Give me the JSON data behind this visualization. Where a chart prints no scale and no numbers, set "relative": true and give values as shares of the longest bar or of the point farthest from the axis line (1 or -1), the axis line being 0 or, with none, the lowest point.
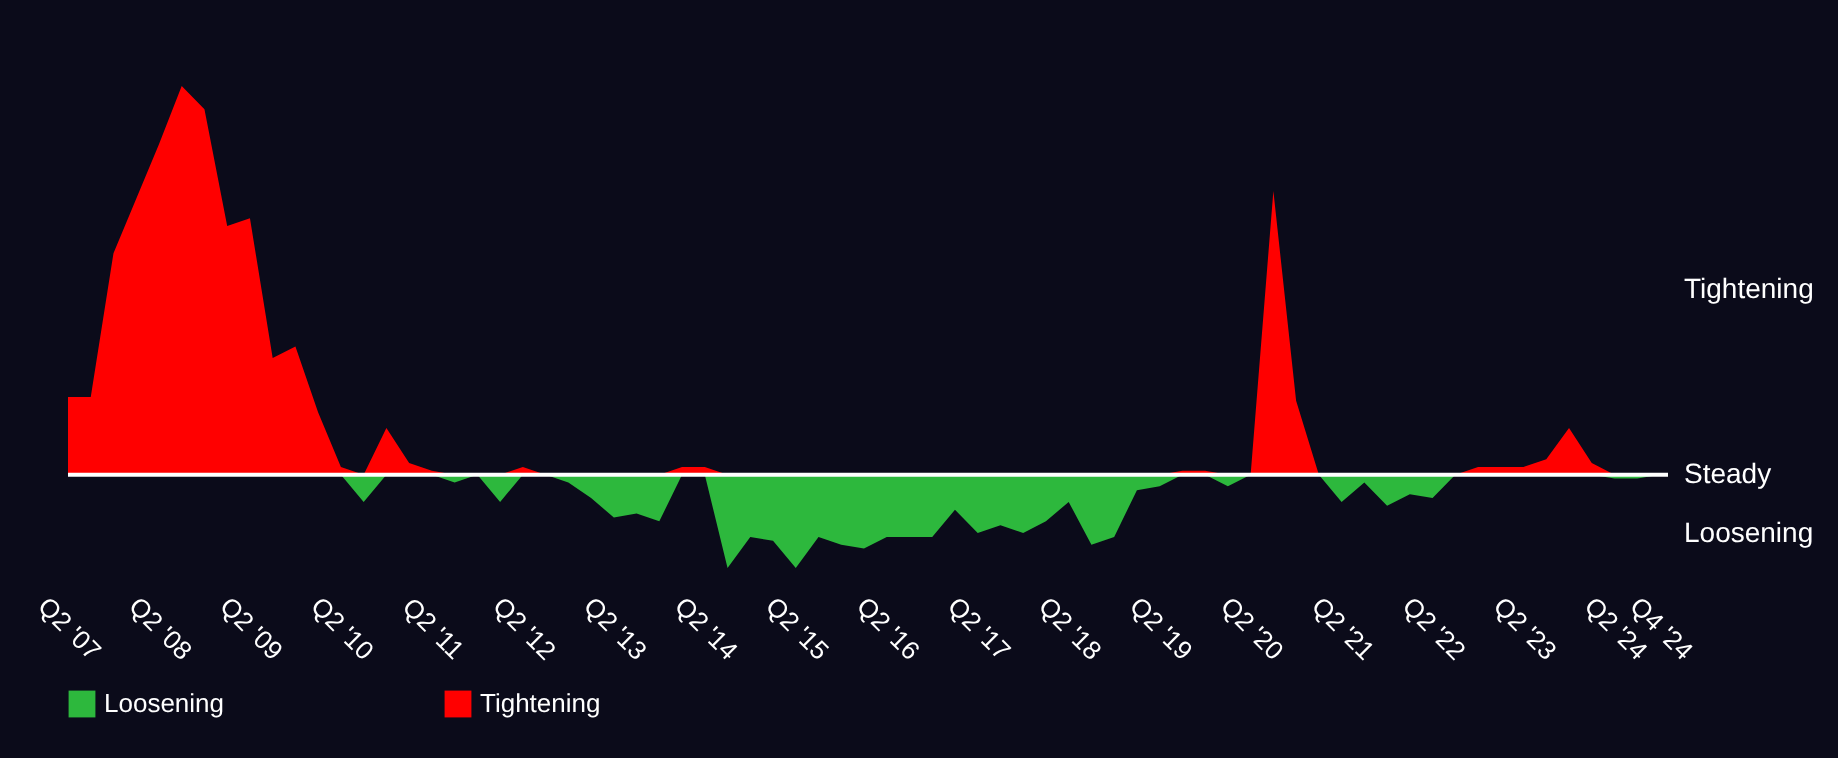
{
  "chart_data": {
    "type": "area",
    "relative": true,
    "categories": [
      "Q2 '07",
      null,
      null,
      null,
      "Q2 '08",
      null,
      null,
      null,
      "Q2 '09",
      null,
      null,
      null,
      "Q2 '10",
      null,
      null,
      null,
      "Q2 '11",
      null,
      null,
      null,
      "Q2 '12",
      null,
      null,
      null,
      "Q2 '13",
      null,
      null,
      null,
      "Q2 '14",
      null,
      null,
      null,
      "Q2 '15",
      null,
      null,
      null,
      "Q2 '16",
      null,
      null,
      null,
      "Q2 '17",
      null,
      null,
      null,
      "Q2 '18",
      null,
      null,
      null,
      "Q2 '19",
      null,
      null,
      null,
      "Q2 '20",
      null,
      null,
      null,
      "Q2 '21",
      null,
      null,
      null,
      "Q2 '22",
      null,
      null,
      null,
      "Q2 '23",
      null,
      null,
      null,
      "Q2 '24",
      null,
      "Q4 '24"
    ],
    "series": [
      {
        "name": "Loosening",
        "color": "#2db83d",
        "values": [
          0,
          0,
          0,
          0,
          0,
          0,
          0,
          0,
          0,
          0,
          0,
          0,
          0,
          -0.07,
          0,
          0,
          0,
          -0.02,
          0,
          -0.07,
          0,
          0,
          -0.02,
          -0.06,
          -0.11,
          -0.1,
          -0.12,
          0,
          0,
          -0.24,
          -0.16,
          -0.17,
          -0.24,
          -0.16,
          -0.18,
          -0.19,
          -0.16,
          -0.16,
          -0.16,
          -0.09,
          -0.15,
          -0.13,
          -0.15,
          -0.12,
          -0.07,
          -0.18,
          -0.16,
          -0.04,
          -0.03,
          0,
          0,
          -0.03,
          0,
          0,
          0,
          0,
          -0.07,
          -0.02,
          -0.08,
          -0.05,
          -0.06,
          0,
          0,
          0,
          0,
          0,
          0,
          0,
          -0.01,
          -0.01,
          0
        ]
      },
      {
        "name": "Tightening",
        "color": "#ff0000",
        "values": [
          0.2,
          0.2,
          0.57,
          0.71,
          0.85,
          1.0,
          0.94,
          0.64,
          0.66,
          0.3,
          0.33,
          0.16,
          0.02,
          0,
          0.12,
          0.03,
          0.01,
          0,
          0,
          0,
          0.02,
          0,
          0,
          0,
          0,
          0,
          0,
          0.02,
          0.02,
          0,
          0,
          0,
          0,
          0,
          0,
          0,
          0,
          0,
          0,
          0,
          0,
          0,
          0,
          0,
          0,
          0,
          0,
          0,
          0,
          0.01,
          0.01,
          0,
          0,
          0.73,
          0.19,
          0,
          0,
          0,
          0,
          0,
          0,
          0,
          0.02,
          0.02,
          0.02,
          0.04,
          0.12,
          0.03,
          0,
          0,
          0
        ]
      }
    ],
    "annotations": [
      "Tightening",
      "Steady",
      "Loosening"
    ],
    "legend": "bottom"
  }
}
